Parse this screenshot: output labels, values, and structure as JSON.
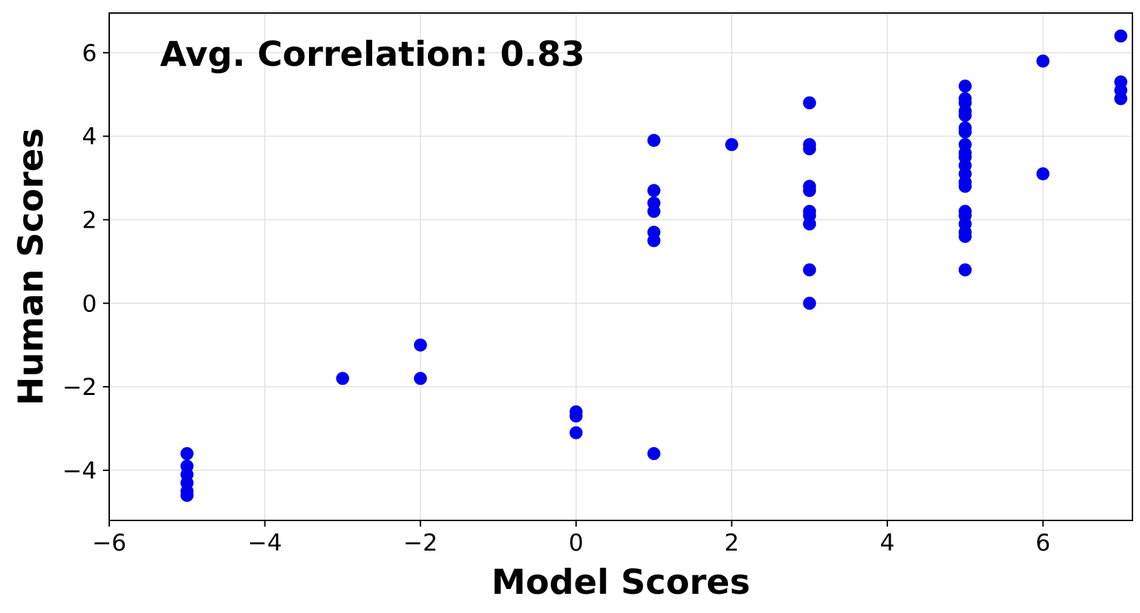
{
  "chart_data": {
    "type": "scatter",
    "xlabel": "Model Scores",
    "ylabel": "Human Scores",
    "annotation": "Avg. Correlation: 0.83",
    "xlim": [
      -6,
      7.15
    ],
    "ylim": [
      -5.2,
      6.95
    ],
    "x_ticks": [
      -6,
      -4,
      -2,
      0,
      2,
      4,
      6
    ],
    "x_tick_labels": [
      "−6",
      "−4",
      "−2",
      "0",
      "2",
      "4",
      "6"
    ],
    "y_ticks": [
      -4,
      -2,
      0,
      2,
      4,
      6
    ],
    "y_tick_labels": [
      "−4",
      "−2",
      "0",
      "2",
      "4",
      "6"
    ],
    "grid": true,
    "marker_color": "#0000ee",
    "points": [
      {
        "x": -5,
        "y": -3.6
      },
      {
        "x": -5,
        "y": -3.9
      },
      {
        "x": -5,
        "y": -4.1
      },
      {
        "x": -5,
        "y": -4.3
      },
      {
        "x": -5,
        "y": -4.5
      },
      {
        "x": -5,
        "y": -4.6
      },
      {
        "x": -3,
        "y": -1.8
      },
      {
        "x": -2,
        "y": -1.0
      },
      {
        "x": -2,
        "y": -1.8
      },
      {
        "x": 0,
        "y": -2.6
      },
      {
        "x": 0,
        "y": -2.7
      },
      {
        "x": 0,
        "y": -3.1
      },
      {
        "x": 1,
        "y": 3.9
      },
      {
        "x": 1,
        "y": 2.7
      },
      {
        "x": 1,
        "y": 2.4
      },
      {
        "x": 1,
        "y": 2.2
      },
      {
        "x": 1,
        "y": 1.7
      },
      {
        "x": 1,
        "y": 1.5
      },
      {
        "x": 1,
        "y": -3.6
      },
      {
        "x": 2,
        "y": 3.8
      },
      {
        "x": 3,
        "y": 4.8
      },
      {
        "x": 3,
        "y": 3.8
      },
      {
        "x": 3,
        "y": 3.7
      },
      {
        "x": 3,
        "y": 2.8
      },
      {
        "x": 3,
        "y": 2.7
      },
      {
        "x": 3,
        "y": 2.2
      },
      {
        "x": 3,
        "y": 2.1
      },
      {
        "x": 3,
        "y": 1.9
      },
      {
        "x": 3,
        "y": 0.8
      },
      {
        "x": 3,
        "y": 0.0
      },
      {
        "x": 5,
        "y": 5.2
      },
      {
        "x": 5,
        "y": 4.9
      },
      {
        "x": 5,
        "y": 4.8
      },
      {
        "x": 5,
        "y": 4.6
      },
      {
        "x": 5,
        "y": 4.5
      },
      {
        "x": 5,
        "y": 4.2
      },
      {
        "x": 5,
        "y": 4.1
      },
      {
        "x": 5,
        "y": 3.8
      },
      {
        "x": 5,
        "y": 3.6
      },
      {
        "x": 5,
        "y": 3.5
      },
      {
        "x": 5,
        "y": 3.3
      },
      {
        "x": 5,
        "y": 3.1
      },
      {
        "x": 5,
        "y": 2.9
      },
      {
        "x": 5,
        "y": 2.8
      },
      {
        "x": 5,
        "y": 2.2
      },
      {
        "x": 5,
        "y": 2.1
      },
      {
        "x": 5,
        "y": 1.9
      },
      {
        "x": 5,
        "y": 1.7
      },
      {
        "x": 5,
        "y": 1.6
      },
      {
        "x": 5,
        "y": 0.8
      },
      {
        "x": 6,
        "y": 5.8
      },
      {
        "x": 6,
        "y": 3.1
      },
      {
        "x": 7,
        "y": 6.4
      },
      {
        "x": 7,
        "y": 5.3
      },
      {
        "x": 7,
        "y": 5.1
      },
      {
        "x": 7,
        "y": 4.9
      }
    ]
  }
}
